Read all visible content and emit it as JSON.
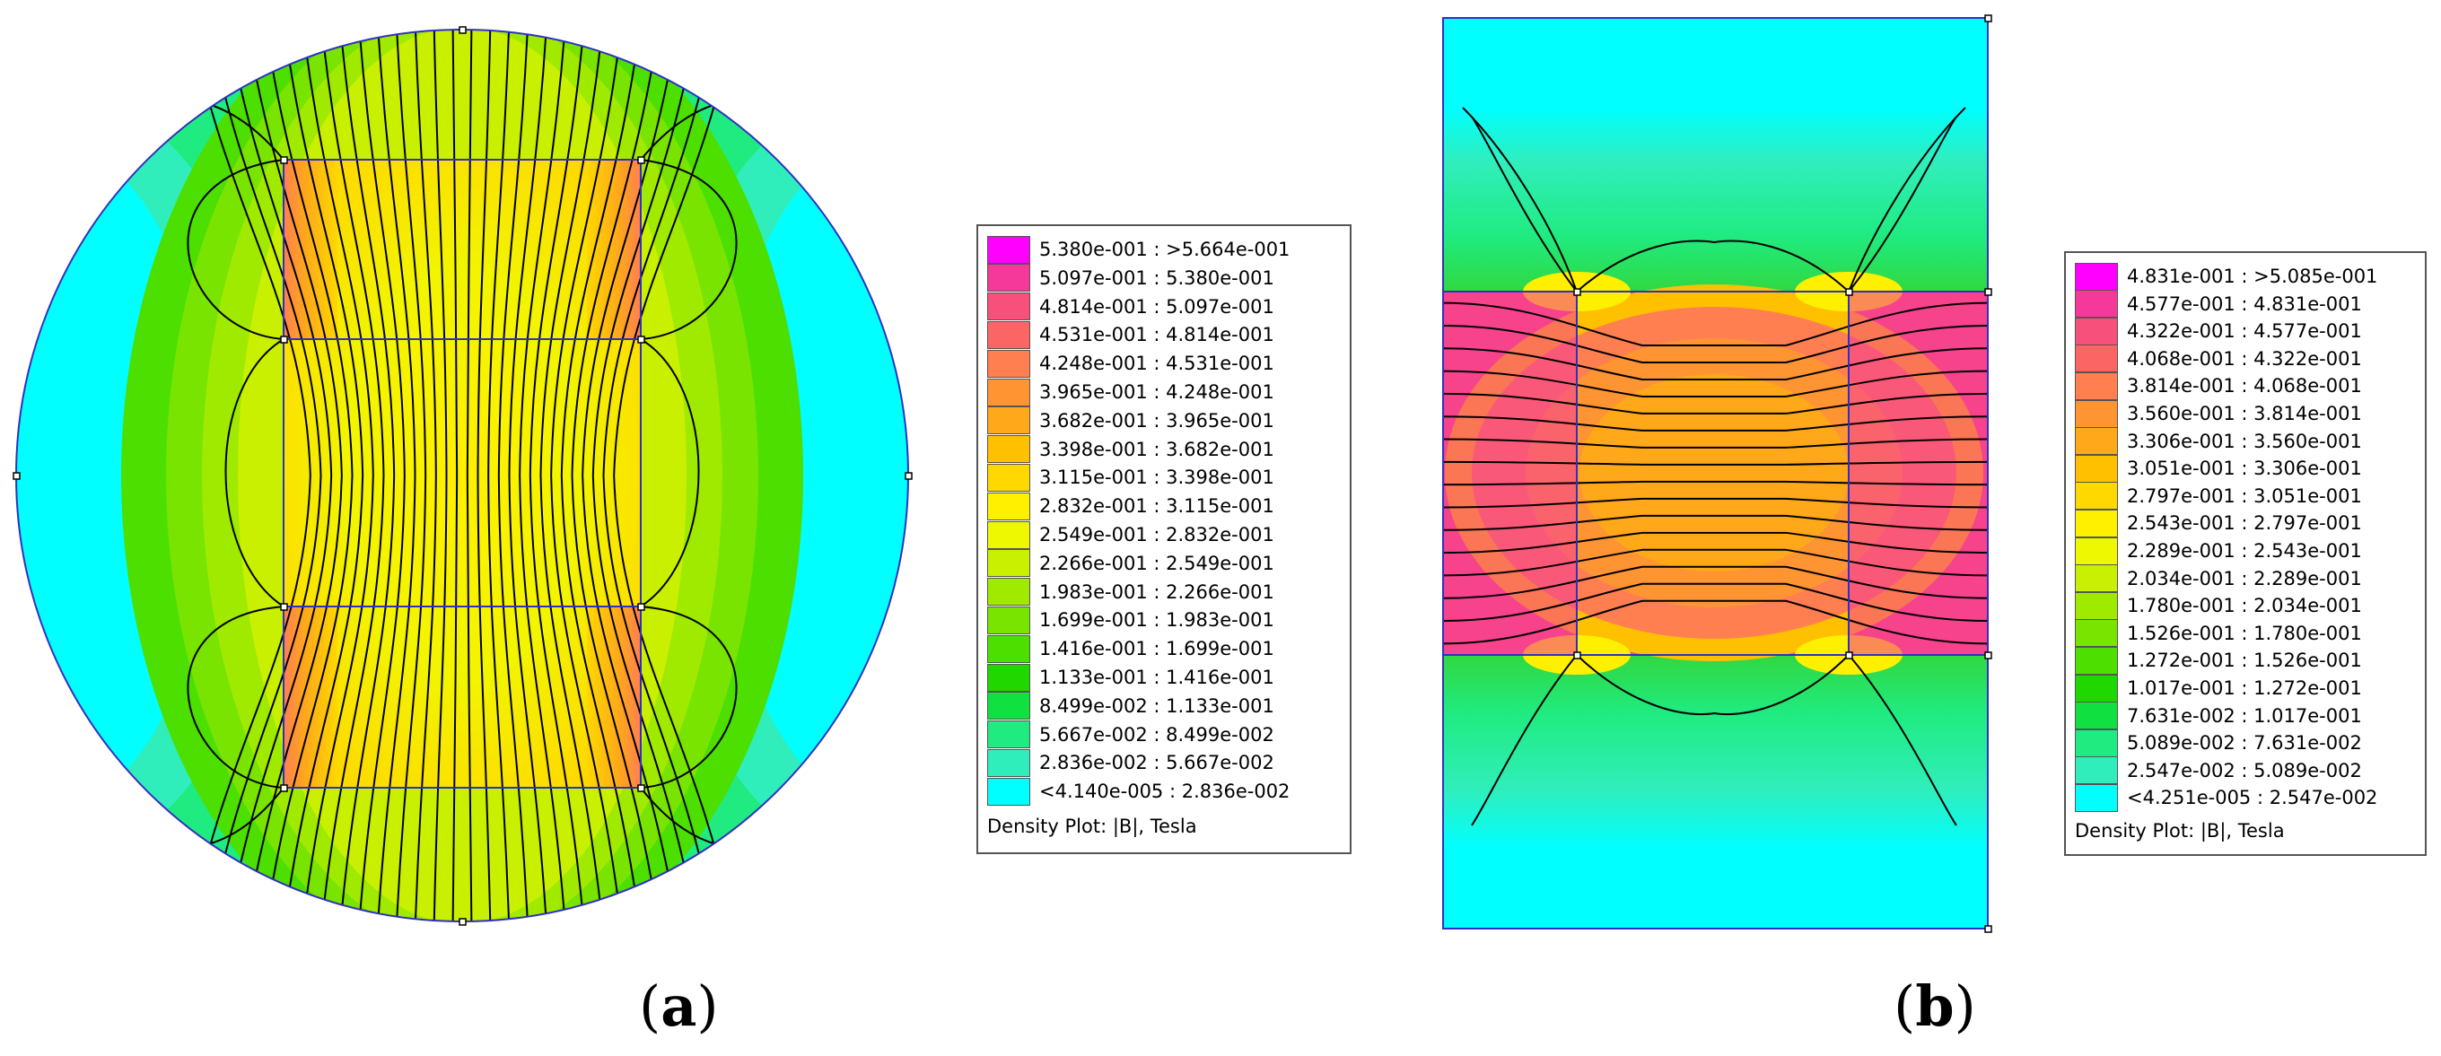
{
  "figure_a": {
    "caption_open": "(",
    "caption_letter": "a",
    "caption_close": ")",
    "legend": {
      "title": "Density Plot: |B|, Tesla",
      "rows": [
        {
          "label": "5.380e-001 : >5.664e-001",
          "color": "#ff00ff"
        },
        {
          "label": "5.097e-001 : 5.380e-001",
          "color": "#f5399a"
        },
        {
          "label": "4.814e-001 : 5.097e-001",
          "color": "#f7507a"
        },
        {
          "label": "4.531e-001 : 4.814e-001",
          "color": "#fb6664"
        },
        {
          "label": "4.248e-001 : 4.531e-001",
          "color": "#ff7f50"
        },
        {
          "label": "3.965e-001 : 4.248e-001",
          "color": "#ff9433"
        },
        {
          "label": "3.682e-001 : 3.965e-001",
          "color": "#ffa81a"
        },
        {
          "label": "3.398e-001 : 3.682e-001",
          "color": "#ffc000"
        },
        {
          "label": "3.115e-001 : 3.398e-001",
          "color": "#ffd800"
        },
        {
          "label": "2.832e-001 : 3.115e-001",
          "color": "#fff000"
        },
        {
          "label": "2.549e-001 : 2.832e-001",
          "color": "#eef800"
        },
        {
          "label": "2.266e-001 : 2.549e-001",
          "color": "#c8f000"
        },
        {
          "label": "1.983e-001 : 2.266e-001",
          "color": "#a0ea00"
        },
        {
          "label": "1.699e-001 : 1.983e-001",
          "color": "#78e400"
        },
        {
          "label": "1.416e-001 : 1.699e-001",
          "color": "#4cdf00"
        },
        {
          "label": "1.133e-001 : 1.416e-001",
          "color": "#20d800"
        },
        {
          "label": "8.499e-002 : 1.133e-001",
          "color": "#10e040"
        },
        {
          "label": "5.667e-002 : 8.499e-002",
          "color": "#20eb80"
        },
        {
          "label": "2.836e-002 : 5.667e-002",
          "color": "#30eebc"
        },
        {
          "label": "<4.140e-005 : 2.836e-002",
          "color": "#00ffff"
        }
      ]
    }
  },
  "figure_b": {
    "caption_open": "(",
    "caption_letter": "b",
    "caption_close": ")",
    "legend": {
      "title": "Density Plot: |B|, Tesla",
      "rows": [
        {
          "label": "4.831e-001 : >5.085e-001",
          "color": "#ff00ff"
        },
        {
          "label": "4.577e-001 : 4.831e-001",
          "color": "#f5399a"
        },
        {
          "label": "4.322e-001 : 4.577e-001",
          "color": "#f7507a"
        },
        {
          "label": "4.068e-001 : 4.322e-001",
          "color": "#fb6664"
        },
        {
          "label": "3.814e-001 : 4.068e-001",
          "color": "#ff7f50"
        },
        {
          "label": "3.560e-001 : 3.814e-001",
          "color": "#ff9433"
        },
        {
          "label": "3.306e-001 : 3.560e-001",
          "color": "#ffa81a"
        },
        {
          "label": "3.051e-001 : 3.306e-001",
          "color": "#ffc000"
        },
        {
          "label": "2.797e-001 : 3.051e-001",
          "color": "#ffd800"
        },
        {
          "label": "2.543e-001 : 2.797e-001",
          "color": "#fff000"
        },
        {
          "label": "2.289e-001 : 2.543e-001",
          "color": "#eef800"
        },
        {
          "label": "2.034e-001 : 2.289e-001",
          "color": "#c8f000"
        },
        {
          "label": "1.780e-001 : 2.034e-001",
          "color": "#a0ea00"
        },
        {
          "label": "1.526e-001 : 1.780e-001",
          "color": "#78e400"
        },
        {
          "label": "1.272e-001 : 1.526e-001",
          "color": "#4cdf00"
        },
        {
          "label": "1.017e-001 : 1.272e-001",
          "color": "#20d800"
        },
        {
          "label": "7.631e-002 : 1.017e-001",
          "color": "#10e040"
        },
        {
          "label": "5.089e-002 : 7.631e-002",
          "color": "#20eb80"
        },
        {
          "label": "2.547e-002 : 5.089e-002",
          "color": "#30eebc"
        },
        {
          "label": "<4.251e-005 : 2.547e-002",
          "color": "#00ffff"
        }
      ]
    }
  }
}
